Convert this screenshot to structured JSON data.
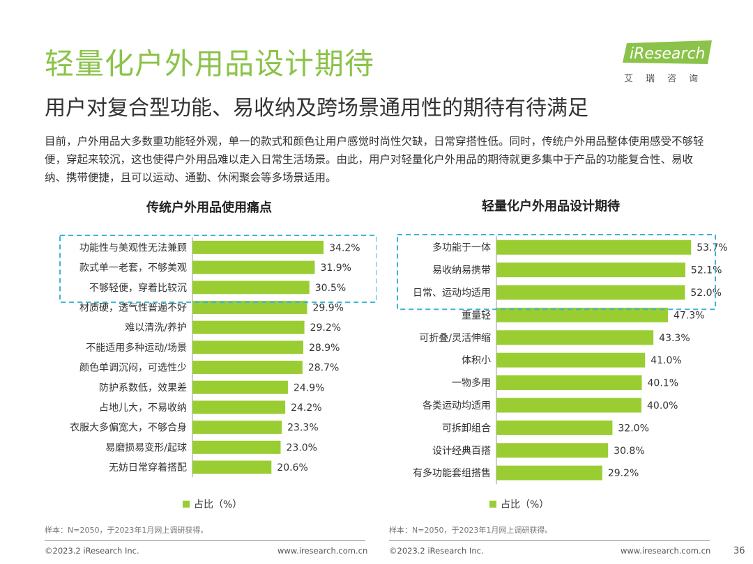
{
  "page": {
    "title": "轻量化户外用品设计期待",
    "subtitle": "用户对复合型功能、易收纳及跨场景通用性的期待有待满足",
    "body": "目前，户外用品大多数重功能轻外观，单一的款式和颜色让用户感觉时尚性欠缺，日常穿搭性低。同时，传统户外用品整体使用感受不够轻便，穿起来较沉，这也使得户外用品难以走入日常生活场景。由此，用户对轻量化户外用品的期待就更多集中于产品的功能复合性、易收纳、携带便捷，且可以运动、通勤、休闲聚会等多场景适用。",
    "logo_text": "iResearch",
    "logo_sub": "艾瑞咨询",
    "page_number": "36"
  },
  "colors": {
    "accent": "#8bc34a",
    "bar": "#9acd32",
    "highlight_box": "#3bb4d6"
  },
  "chart_data": [
    {
      "type": "bar",
      "orientation": "horizontal",
      "title": "传统户外用品使用痛点",
      "categories": [
        "功能性与美观性无法兼顾",
        "款式单一老套，不够美观",
        "不够轻便，穿着比较沉",
        "材质硬，透气性普遍不好",
        "难以清洗/养护",
        "不能适用多种运动/场景",
        "颜色单调沉闷，可选性少",
        "防护系数低，效果差",
        "占地儿大，不易收纳",
        "衣服大多偏宽大，不够合身",
        "易磨损易变形/起球",
        "无妨日常穿着搭配"
      ],
      "series": [
        {
          "name": "占比（%）",
          "values": [
            34.2,
            31.9,
            30.5,
            29.9,
            29.2,
            28.9,
            28.7,
            24.9,
            24.2,
            23.3,
            23.0,
            20.6
          ]
        }
      ],
      "value_labels": [
        "34.2%",
        "31.9%",
        "30.5%",
        "29.9%",
        "29.2%",
        "28.9%",
        "28.7%",
        "24.9%",
        "24.2%",
        "23.3%",
        "23.0%",
        "20.6%"
      ],
      "highlighted_top": 3,
      "legend": "占比（%）",
      "note": "样本：N=2050，于2023年1月网上调研获得。"
    },
    {
      "type": "bar",
      "orientation": "horizontal",
      "title": "轻量化户外用品设计期待",
      "categories": [
        "多功能于一体",
        "易收纳易携带",
        "日常、运动均适用",
        "重量轻",
        "可折叠/灵活伸缩",
        "体积小",
        "一物多用",
        "各类运动均适用",
        "可拆卸组合",
        "设计经典百搭",
        "有多功能套组搭售"
      ],
      "series": [
        {
          "name": "占比（%）",
          "values": [
            53.7,
            52.1,
            52.0,
            47.3,
            43.3,
            41.0,
            40.1,
            40.0,
            32.0,
            30.8,
            29.2
          ]
        }
      ],
      "value_labels": [
        "53.7%",
        "52.1%",
        "52.0%",
        "47.3%",
        "43.3%",
        "41.0%",
        "40.1%",
        "40.0%",
        "32.0%",
        "30.8%",
        "29.2%"
      ],
      "highlighted_top": 3,
      "legend": "占比（%）",
      "note": "样本：N=2050，于2023年1月网上调研获得。"
    }
  ],
  "footer": {
    "left_copyright": "©2023.2 iResearch Inc.",
    "left_url": "www.iresearch.com.cn",
    "right_copyright": "©2023.2 iResearch Inc.",
    "right_url": "www.iresearch.com.cn"
  }
}
